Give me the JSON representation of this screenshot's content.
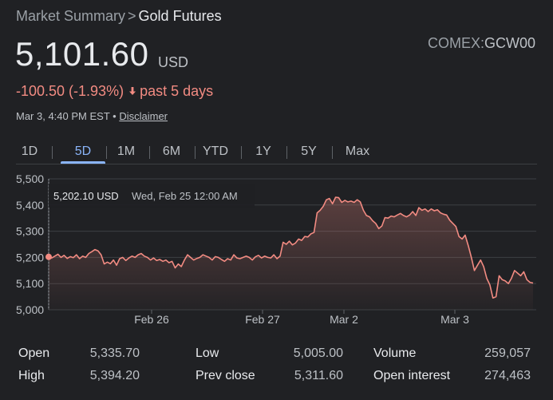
{
  "breadcrumb": {
    "parent": "Market Summary",
    "separator": ">",
    "current": "Gold Futures"
  },
  "exchange": {
    "market": "COMEX:",
    "ticker": "GCW00"
  },
  "quote": {
    "price": "5,101.60",
    "currency": "USD",
    "change": "-100.50 (-1.93%)",
    "change_direction": "down",
    "period": "past 5 days",
    "timestamp": "Mar 3, 4:40 PM EST",
    "bullet": "•",
    "disclaimer_label": "Disclaimer"
  },
  "tabs": [
    {
      "label": "1D",
      "active": false
    },
    {
      "label": "5D",
      "active": true
    },
    {
      "label": "1M",
      "active": false
    },
    {
      "label": "6M",
      "active": false
    },
    {
      "label": "YTD",
      "active": false
    },
    {
      "label": "1Y",
      "active": false
    },
    {
      "label": "5Y",
      "active": false
    },
    {
      "label": "Max",
      "active": false
    }
  ],
  "colors": {
    "line": "#f28b82",
    "accent": "#8ab4f8",
    "background": "#202124"
  },
  "tooltip": {
    "value": "5,202.10 USD",
    "time": "Wed, Feb 25 12:00 AM"
  },
  "chart_data": {
    "type": "line",
    "title": "",
    "xlabel": "",
    "ylabel": "",
    "ylim": [
      5000,
      5500
    ],
    "yticks": [
      "5,500",
      "5,400",
      "5,300",
      "5,200",
      "5,100",
      "5,000"
    ],
    "ytick_values": [
      5500,
      5400,
      5300,
      5200,
      5100,
      5000
    ],
    "xticks": [
      "Feb 26",
      "Feb 27",
      "Mar 2",
      "Mar 3"
    ],
    "grid": true,
    "series": [
      {
        "values": [
          5202,
          5198,
          5205,
          5212,
          5200,
          5208,
          5196,
          5203,
          5199,
          5210,
          5195,
          5205,
          5200,
          5215,
          5222,
          5230,
          5225,
          5210,
          5175,
          5182,
          5176,
          5190,
          5170,
          5195,
          5200,
          5188,
          5198,
          5205,
          5200,
          5210,
          5215,
          5205,
          5200,
          5190,
          5198,
          5188,
          5192,
          5185,
          5190,
          5180,
          5185,
          5160,
          5175,
          5165,
          5190,
          5210,
          5200,
          5190,
          5196,
          5200,
          5210,
          5205,
          5200,
          5190,
          5203,
          5200,
          5192,
          5185,
          5195,
          5190,
          5210,
          5198,
          5195,
          5200,
          5205,
          5200,
          5190,
          5202,
          5208,
          5198,
          5205,
          5200,
          5198,
          5210,
          5195,
          5205,
          5258,
          5250,
          5262,
          5248,
          5255,
          5270,
          5265,
          5280,
          5278,
          5290,
          5295,
          5370,
          5380,
          5395,
          5420,
          5425,
          5405,
          5430,
          5428,
          5410,
          5418,
          5412,
          5415,
          5410,
          5420,
          5412,
          5380,
          5360,
          5355,
          5340,
          5330,
          5310,
          5320,
          5352,
          5350,
          5358,
          5355,
          5362,
          5368,
          5360,
          5355,
          5362,
          5375,
          5360,
          5390,
          5380,
          5385,
          5375,
          5385,
          5378,
          5382,
          5370,
          5365,
          5362,
          5342,
          5330,
          5318,
          5280,
          5270,
          5285,
          5245,
          5200,
          5150,
          5170,
          5190,
          5165,
          5120,
          5095,
          5045,
          5050,
          5130,
          5115,
          5110,
          5100,
          5120,
          5150,
          5140,
          5130,
          5145,
          5115,
          5105,
          5102
        ]
      }
    ],
    "selected_point": {
      "value": 5202.1,
      "index": 0
    }
  },
  "stats": [
    {
      "label": "Open",
      "value": "5,335.70"
    },
    {
      "label": "High",
      "value": "5,394.20"
    },
    {
      "label": "Low",
      "value": "5,005.00"
    },
    {
      "label": "Prev close",
      "value": "5,311.60"
    },
    {
      "label": "Volume",
      "value": "259,057"
    },
    {
      "label": "Open interest",
      "value": "274,463"
    }
  ]
}
